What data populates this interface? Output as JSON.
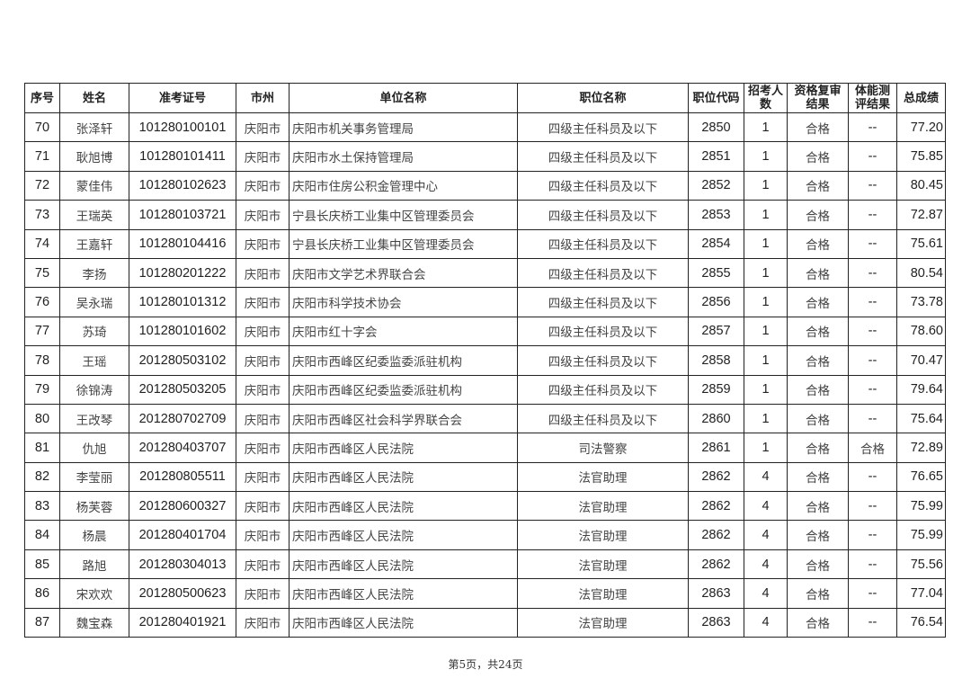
{
  "headers": [
    "序号",
    "姓名",
    "准考证号",
    "市州",
    "单位名称",
    "职位名称",
    "职位代码",
    "招考人数",
    "资格复审结果",
    "体能测评结果",
    "总成绩"
  ],
  "rows": [
    [
      "70",
      "张泽轩",
      "101280100101",
      "庆阳市",
      "庆阳市机关事务管理局",
      "四级主任科员及以下",
      "2850",
      "1",
      "合格",
      "--",
      "77.20"
    ],
    [
      "71",
      "耿旭博",
      "101280101411",
      "庆阳市",
      "庆阳市水土保持管理局",
      "四级主任科员及以下",
      "2851",
      "1",
      "合格",
      "--",
      "75.85"
    ],
    [
      "72",
      "蒙佳伟",
      "101280102623",
      "庆阳市",
      "庆阳市住房公积金管理中心",
      "四级主任科员及以下",
      "2852",
      "1",
      "合格",
      "--",
      "80.45"
    ],
    [
      "73",
      "王瑞英",
      "101280103721",
      "庆阳市",
      "宁县长庆桥工业集中区管理委员会",
      "四级主任科员及以下",
      "2853",
      "1",
      "合格",
      "--",
      "72.87"
    ],
    [
      "74",
      "王嘉轩",
      "101280104416",
      "庆阳市",
      "宁县长庆桥工业集中区管理委员会",
      "四级主任科员及以下",
      "2854",
      "1",
      "合格",
      "--",
      "75.61"
    ],
    [
      "75",
      "李扬",
      "101280201222",
      "庆阳市",
      "庆阳市文学艺术界联合会",
      "四级主任科员及以下",
      "2855",
      "1",
      "合格",
      "--",
      "80.54"
    ],
    [
      "76",
      "吴永瑞",
      "101280101312",
      "庆阳市",
      "庆阳市科学技术协会",
      "四级主任科员及以下",
      "2856",
      "1",
      "合格",
      "--",
      "73.78"
    ],
    [
      "77",
      "苏琦",
      "101280101602",
      "庆阳市",
      "庆阳市红十字会",
      "四级主任科员及以下",
      "2857",
      "1",
      "合格",
      "--",
      "78.60"
    ],
    [
      "78",
      "王瑶",
      "201280503102",
      "庆阳市",
      "庆阳市西峰区纪委监委派驻机构",
      "四级主任科员及以下",
      "2858",
      "1",
      "合格",
      "--",
      "70.47"
    ],
    [
      "79",
      "徐锦涛",
      "201280503205",
      "庆阳市",
      "庆阳市西峰区纪委监委派驻机构",
      "四级主任科员及以下",
      "2859",
      "1",
      "合格",
      "--",
      "79.64"
    ],
    [
      "80",
      "王改琴",
      "201280702709",
      "庆阳市",
      "庆阳市西峰区社会科学界联合会",
      "四级主任科员及以下",
      "2860",
      "1",
      "合格",
      "--",
      "75.64"
    ],
    [
      "81",
      "仇旭",
      "201280403707",
      "庆阳市",
      "庆阳市西峰区人民法院",
      "司法警察",
      "2861",
      "1",
      "合格",
      "合格",
      "72.89"
    ],
    [
      "82",
      "李莹丽",
      "201280805511",
      "庆阳市",
      "庆阳市西峰区人民法院",
      "法官助理",
      "2862",
      "4",
      "合格",
      "--",
      "76.65"
    ],
    [
      "83",
      "杨芙蓉",
      "201280600327",
      "庆阳市",
      "庆阳市西峰区人民法院",
      "法官助理",
      "2862",
      "4",
      "合格",
      "--",
      "75.99"
    ],
    [
      "84",
      "杨晨",
      "201280401704",
      "庆阳市",
      "庆阳市西峰区人民法院",
      "法官助理",
      "2862",
      "4",
      "合格",
      "--",
      "75.99"
    ],
    [
      "85",
      "路旭",
      "201280304013",
      "庆阳市",
      "庆阳市西峰区人民法院",
      "法官助理",
      "2862",
      "4",
      "合格",
      "--",
      "75.56"
    ],
    [
      "86",
      "宋欢欢",
      "201280500623",
      "庆阳市",
      "庆阳市西峰区人民法院",
      "法官助理",
      "2863",
      "4",
      "合格",
      "--",
      "77.04"
    ],
    [
      "87",
      "魏宝森",
      "201280401921",
      "庆阳市",
      "庆阳市西峰区人民法院",
      "法官助理",
      "2863",
      "4",
      "合格",
      "--",
      "76.54"
    ]
  ],
  "footer": "第5页，共24页"
}
